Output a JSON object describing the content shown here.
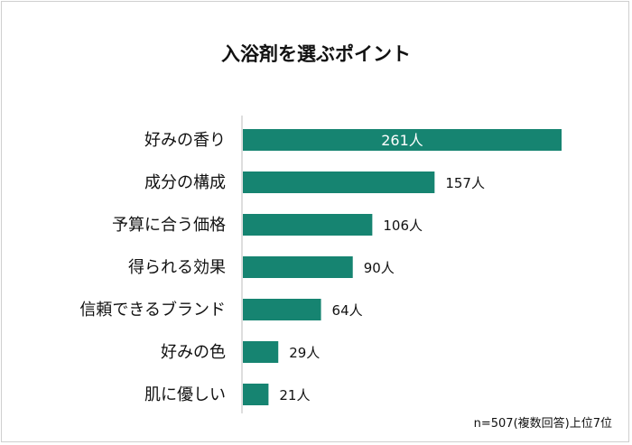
{
  "chart_data": {
    "type": "bar",
    "orientation": "horizontal",
    "title": "入浴剤を選ぶポイント",
    "categories": [
      "好みの香り",
      "成分の構成",
      "予算に合う価格",
      "得られる効果",
      "信頼できるブランド",
      "好みの色",
      "肌に優しい"
    ],
    "values": [
      261,
      157,
      106,
      90,
      64,
      29,
      21
    ],
    "value_labels": [
      "261人",
      "157人",
      "106人",
      "90人",
      "64人",
      "29人",
      "21人"
    ],
    "unit": "人",
    "bar_color": "#168471",
    "xlim": [
      0,
      261
    ],
    "grid": false,
    "footnote": "n=507(複数回答)上位7位"
  }
}
